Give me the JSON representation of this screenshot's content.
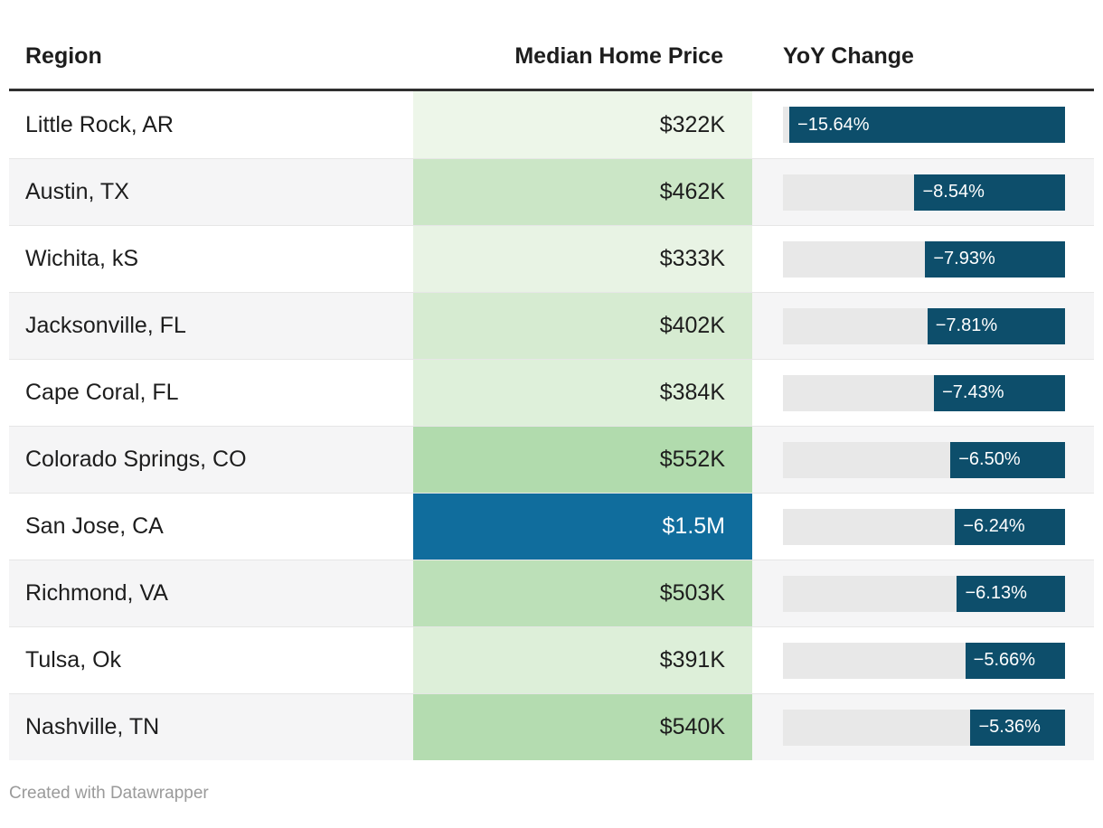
{
  "header": {
    "columns": [
      "Region",
      "Median Home Price",
      "YoY Change"
    ]
  },
  "footer": {
    "credit": "Created with Datawrapper"
  },
  "colors": {
    "text": "#1d1d1d",
    "header_rule": "#2f2f2f",
    "row_stripe": "#f5f5f6",
    "row_separator": "#e6e6e6",
    "bar_track": "#e8e8e8",
    "bar_fill": "#0d4e6b",
    "bar_label": "#ffffff",
    "price_max_fill": "#106d9d",
    "credit_gray": "#9a9a9a"
  },
  "chart_data": {
    "type": "table",
    "columns": [
      "Region",
      "Median Home Price",
      "YoY Change"
    ],
    "bar_axis_max": 16,
    "legend_note": "price column uses green heatmap shading; max value shaded blue with white text; YoY bars right-anchored, length proportional to magnitude",
    "rows": [
      {
        "region": "Little Rock, AR",
        "price_label": "$322K",
        "price_value_k": 322,
        "price_bg": "#edf6e9",
        "price_color": "#1d1d1d",
        "yoy_label": "−15.64%",
        "yoy_value": -15.64
      },
      {
        "region": "Austin, TX",
        "price_label": "$462K",
        "price_value_k": 462,
        "price_bg": "#cbe6c6",
        "price_color": "#1d1d1d",
        "yoy_label": "−8.54%",
        "yoy_value": -8.54
      },
      {
        "region": "Wichita, kS",
        "price_label": "$333K",
        "price_value_k": 333,
        "price_bg": "#e8f3e4",
        "price_color": "#1d1d1d",
        "yoy_label": "−7.93%",
        "yoy_value": -7.93
      },
      {
        "region": "Jacksonville, FL",
        "price_label": "$402K",
        "price_value_k": 402,
        "price_bg": "#d6ebd1",
        "price_color": "#1d1d1d",
        "yoy_label": "−7.81%",
        "yoy_value": -7.81
      },
      {
        "region": "Cape Coral, FL",
        "price_label": "$384K",
        "price_value_k": 384,
        "price_bg": "#def0da",
        "price_color": "#1d1d1d",
        "yoy_label": "−7.43%",
        "yoy_value": -7.43
      },
      {
        "region": "Colorado Springs, CO",
        "price_label": "$552K",
        "price_value_k": 552,
        "price_bg": "#b1dbad",
        "price_color": "#1d1d1d",
        "yoy_label": "−6.50%",
        "yoy_value": -6.5
      },
      {
        "region": "San Jose, CA",
        "price_label": "$1.5M",
        "price_value_k": 1500,
        "price_bg": "#106d9d",
        "price_color": "#ffffff",
        "yoy_label": "−6.24%",
        "yoy_value": -6.24
      },
      {
        "region": "Richmond, VA",
        "price_label": "$503K",
        "price_value_k": 503,
        "price_bg": "#bce0b8",
        "price_color": "#1d1d1d",
        "yoy_label": "−6.13%",
        "yoy_value": -6.13
      },
      {
        "region": "Tulsa, Ok",
        "price_label": "$391K",
        "price_value_k": 391,
        "price_bg": "#ddefd9",
        "price_color": "#1d1d1d",
        "yoy_label": "−5.66%",
        "yoy_value": -5.66
      },
      {
        "region": "Nashville, TN",
        "price_label": "$540K",
        "price_value_k": 540,
        "price_bg": "#b4dcb0",
        "price_color": "#1d1d1d",
        "yoy_label": "−5.36%",
        "yoy_value": -5.36
      }
    ]
  }
}
